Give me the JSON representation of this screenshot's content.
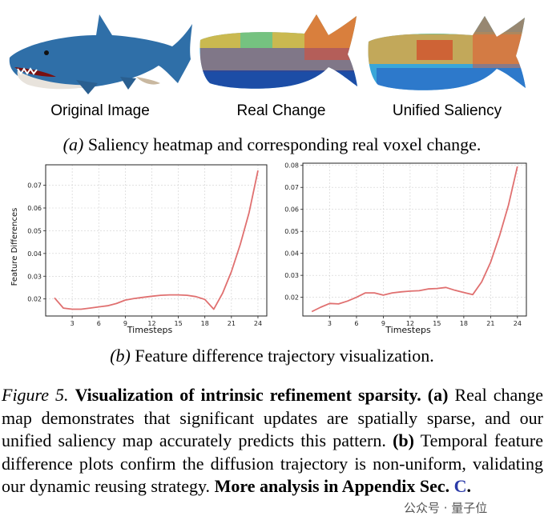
{
  "panel_a": {
    "labels": [
      "Original Image",
      "Real Change",
      "Unified Saliency"
    ],
    "subcaption_tag": "(a)",
    "subcaption_text": " Saliency heatmap and corresponding real voxel change."
  },
  "panel_b": {
    "subcaption_tag": "(b)",
    "subcaption_text": " Feature difference trajectory visualization."
  },
  "chart_data": [
    {
      "type": "line",
      "xlabel": "Timesteps",
      "ylabel": "Feature Differences",
      "xticks": [
        3,
        6,
        9,
        12,
        15,
        18,
        21,
        24
      ],
      "yticks": [
        0.02,
        0.03,
        0.04,
        0.05,
        0.06,
        0.07
      ],
      "xlim": [
        0,
        25
      ],
      "ylim": [
        0.0125,
        0.079
      ],
      "grid": true,
      "color": "#e07070",
      "series": [
        {
          "x": [
            1,
            2,
            3,
            4,
            5,
            6,
            7,
            8,
            9,
            10,
            11,
            12,
            13,
            14,
            15,
            16,
            17,
            18,
            19,
            20,
            21,
            22,
            23,
            24
          ],
          "y": [
            0.0205,
            0.016,
            0.0155,
            0.0155,
            0.016,
            0.0165,
            0.017,
            0.018,
            0.0195,
            0.0202,
            0.0207,
            0.0212,
            0.0216,
            0.0218,
            0.0218,
            0.0216,
            0.021,
            0.0198,
            0.0155,
            0.0225,
            0.032,
            0.044,
            0.058,
            0.0765
          ]
        }
      ]
    },
    {
      "type": "line",
      "xlabel": "Timesteps",
      "ylabel": "",
      "xticks": [
        3,
        6,
        9,
        12,
        15,
        18,
        21,
        24
      ],
      "yticks": [
        0.02,
        0.03,
        0.04,
        0.05,
        0.06,
        0.07,
        0.08
      ],
      "xlim": [
        0,
        25
      ],
      "ylim": [
        0.0115,
        0.081
      ],
      "grid": true,
      "color": "#e07070",
      "series": [
        {
          "x": [
            1,
            2,
            3,
            4,
            5,
            6,
            7,
            8,
            9,
            10,
            11,
            12,
            13,
            14,
            15,
            16,
            17,
            18,
            19,
            20,
            21,
            22,
            23,
            24
          ],
          "y": [
            0.0135,
            0.0155,
            0.0172,
            0.017,
            0.0183,
            0.02,
            0.022,
            0.022,
            0.021,
            0.022,
            0.0225,
            0.0228,
            0.023,
            0.0238,
            0.024,
            0.0245,
            0.0232,
            0.0222,
            0.0212,
            0.027,
            0.036,
            0.048,
            0.062,
            0.0795
          ]
        }
      ]
    }
  ],
  "caption": {
    "figure_label": "Figure 5.",
    "title": "Visualization of intrinsic refinement sparsity.",
    "a_tag": "(a)",
    "a_text": " Real change map demonstrates that significant updates are spatially sparse, and our unified saliency map accurately predicts this pattern.",
    "b_tag": "(b)",
    "b_text": " Temporal feature difference plots confirm the diffusion trajectory is non-uniform, validating our dynamic reusing strategy.",
    "more": "More analysis in Appendix Sec.",
    "ref": "C",
    "end": "."
  },
  "watermark": "公众号 · 量子位",
  "colors": {
    "shark_blue": "#2f6fa8",
    "line": "#e07070"
  }
}
